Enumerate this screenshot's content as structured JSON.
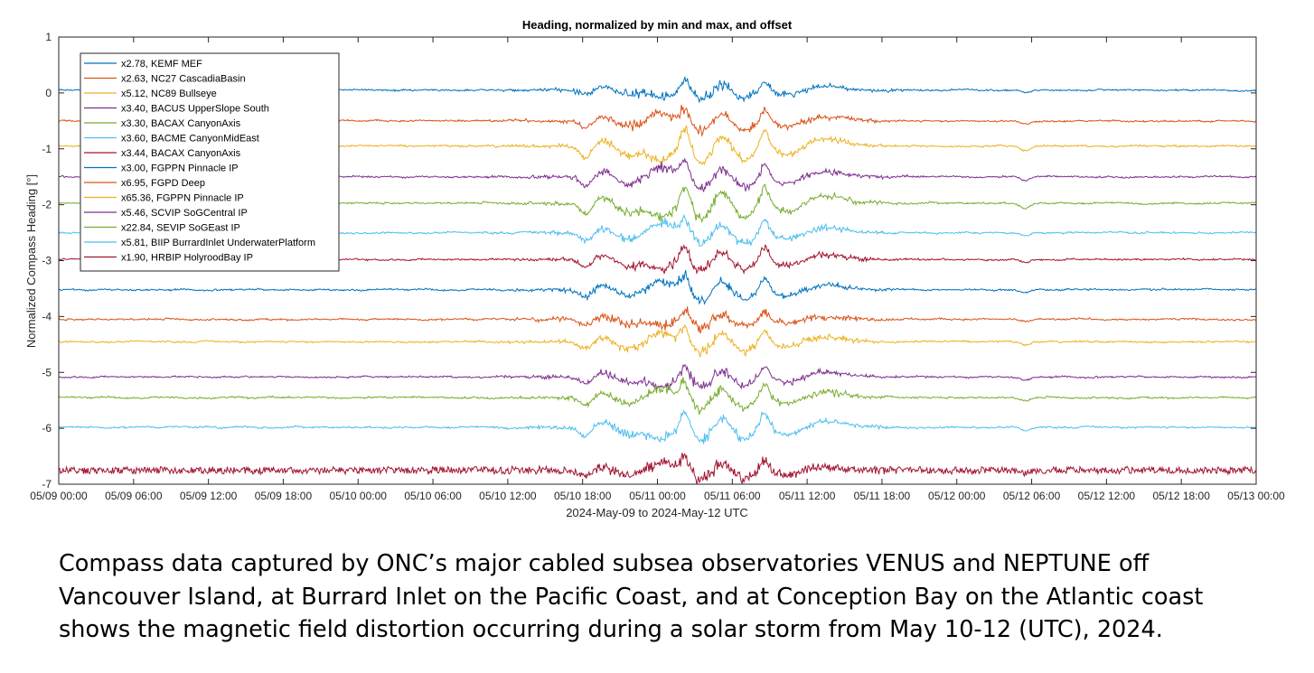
{
  "chart_data": {
    "type": "line",
    "title": "Heading, normalized by min and max, and offset",
    "xlabel": "2024-May-09 to 2024-May-12 UTC",
    "ylabel": "Normalized Compass Heading [°]",
    "x_range_hours": [
      0,
      96
    ],
    "x_ticks": [
      {
        "t": 0,
        "label": "05/09 00:00"
      },
      {
        "t": 6,
        "label": "05/09 06:00"
      },
      {
        "t": 12,
        "label": "05/09 12:00"
      },
      {
        "t": 18,
        "label": "05/09 18:00"
      },
      {
        "t": 24,
        "label": "05/10 00:00"
      },
      {
        "t": 30,
        "label": "05/10 06:00"
      },
      {
        "t": 36,
        "label": "05/10 12:00"
      },
      {
        "t": 42,
        "label": "05/10 18:00"
      },
      {
        "t": 48,
        "label": "05/11 00:00"
      },
      {
        "t": 54,
        "label": "05/11 06:00"
      },
      {
        "t": 60,
        "label": "05/11 12:00"
      },
      {
        "t": 66,
        "label": "05/11 18:00"
      },
      {
        "t": 72,
        "label": "05/12 00:00"
      },
      {
        "t": 78,
        "label": "05/12 06:00"
      },
      {
        "t": 84,
        "label": "05/12 12:00"
      },
      {
        "t": 90,
        "label": "05/12 18:00"
      },
      {
        "t": 96,
        "label": "05/13 00:00"
      }
    ],
    "ylim": [
      -7,
      1
    ],
    "y_ticks": [
      1,
      0,
      -1,
      -2,
      -3,
      -4,
      -5,
      -6,
      -7
    ],
    "grid": false,
    "legend_position": "top-left",
    "series": [
      {
        "name": "x2.78, KEMF MEF",
        "color": "#0072BD",
        "baseline": 0.05,
        "amplitude": 0.3,
        "shift": 0.0
      },
      {
        "name": "x2.63, NC27 CascadiaBasin",
        "color": "#D95319",
        "baseline": -0.5,
        "amplitude": 0.3,
        "shift": 0.0
      },
      {
        "name": "x5.12, NC89 Bullseye",
        "color": "#EDB120",
        "baseline": -0.95,
        "amplitude": 0.42,
        "shift": 0.0
      },
      {
        "name": "x3.40, BACUS UpperSlope South",
        "color": "#7E2F8E",
        "baseline": -1.5,
        "amplitude": 0.42,
        "shift": 0.0
      },
      {
        "name": "x3.30, BACAX CanyonAxis",
        "color": "#77AC30",
        "baseline": -1.97,
        "amplitude": 0.45,
        "shift": 0.0
      },
      {
        "name": "x3.60, BACME CanyonMidEast",
        "color": "#4DBEEE",
        "baseline": -2.5,
        "amplitude": 0.45,
        "shift": 0.0
      },
      {
        "name": "x3.44, BACAX CanyonAxis",
        "color": "#A2142F",
        "baseline": -2.98,
        "amplitude": 0.32,
        "shift": 0.0
      },
      {
        "name": "x3.00, FGPPN Pinnacle IP",
        "color": "#0072BD",
        "baseline": -3.52,
        "amplitude": 0.3,
        "shift": 0.0
      },
      {
        "name": "x6.95, FGPD Deep",
        "color": "#D95319",
        "baseline": -4.05,
        "amplitude": 0.25,
        "shift": 0.0
      },
      {
        "name": "x65.36, FGPPN Pinnacle IP",
        "color": "#EDB120",
        "baseline": -4.45,
        "amplitude": 0.3,
        "shift": 0.0
      },
      {
        "name": "x5.46, SCVIP SoGCentral IP",
        "color": "#7E2F8E",
        "baseline": -5.08,
        "amplitude": 0.38,
        "shift": 0.0
      },
      {
        "name": "x22.84, SEVIP SoGEast IP",
        "color": "#77AC30",
        "baseline": -5.45,
        "amplitude": 0.35,
        "shift": 0.0
      },
      {
        "name": "x5.81, BIIP BurrardInlet UnderwaterPlatform",
        "color": "#4DBEEE",
        "baseline": -5.98,
        "amplitude": 0.35,
        "shift": 0.0
      },
      {
        "name": "x1.90, HRBIP HolyroodBay IP",
        "color": "#A2142F",
        "baseline": -6.75,
        "amplitude": 0.3,
        "shift": 0.0
      }
    ]
  },
  "caption": {
    "line1": "Compass data captured by ONC’s major cabled subsea observatories VENUS and NEPTUNE off",
    "line2": "Vancouver Island, at Burrard Inlet on the Pacific Coast, and at Conception Bay on the Atlantic coast",
    "line3": "shows the magnetic field distortion occurring during a solar storm from May 10-12 (UTC), 2024."
  }
}
